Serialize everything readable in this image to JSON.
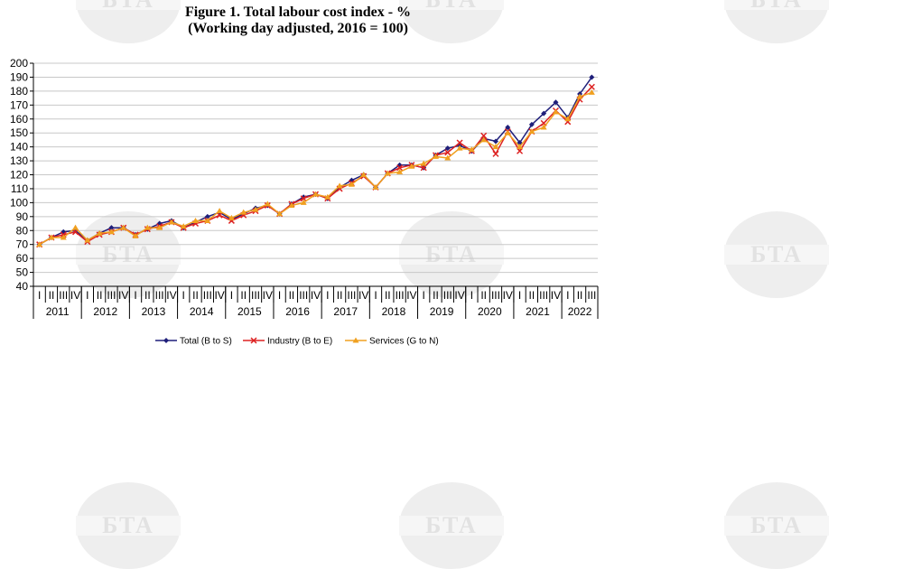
{
  "title_line1": "Figure 1. Total labour cost index - %",
  "title_line2": "(Working day adjusted, 2016 = 100)",
  "watermark_text": "БТА",
  "chart_data": {
    "type": "line",
    "title": "Figure 1. Total labour cost index - %",
    "subtitle": "(Working day adjusted, 2016 = 100)",
    "ylim": [
      40,
      200
    ],
    "yticks": [
      40,
      50,
      60,
      70,
      80,
      90,
      100,
      110,
      120,
      130,
      140,
      150,
      160,
      170,
      180,
      190,
      200
    ],
    "grid": true,
    "legend_position": "bottom",
    "quarter_labels": [
      "I",
      "II",
      "III",
      "IV"
    ],
    "years": [
      "2011",
      "2012",
      "2013",
      "2014",
      "2015",
      "2016",
      "2017",
      "2018",
      "2019",
      "2020",
      "2021",
      "2022"
    ],
    "categories": [
      "2011 I",
      "2011 II",
      "2011 III",
      "2011 IV",
      "2012 I",
      "2012 II",
      "2012 III",
      "2012 IV",
      "2013 I",
      "2013 II",
      "2013 III",
      "2013 IV",
      "2014 I",
      "2014 II",
      "2014 III",
      "2014 IV",
      "2015 I",
      "2015 II",
      "2015 III",
      "2015 IV",
      "2016 I",
      "2016 II",
      "2016 III",
      "2016 IV",
      "2017 I",
      "2017 II",
      "2017 III",
      "2017 IV",
      "2018 I",
      "2018 II",
      "2018 III",
      "2018 IV",
      "2019 I",
      "2019 II",
      "2019 III",
      "2019 IV",
      "2020 I",
      "2020 II",
      "2020 III",
      "2020 IV",
      "2021 I",
      "2021 II",
      "2021 III",
      "2021 IV",
      "2022 I",
      "2022 II",
      "2022 III"
    ],
    "series": [
      {
        "name": "Total (B to S)",
        "color": "#1f1f7a",
        "marker": "diamond",
        "values": [
          70,
          75,
          79,
          80,
          73,
          78,
          82,
          82,
          77,
          81,
          85,
          87,
          82,
          86,
          90,
          93,
          88,
          92,
          96,
          98,
          92,
          99,
          104,
          106,
          103,
          111,
          116,
          120,
          111,
          121,
          127,
          127,
          125,
          134,
          139,
          141,
          137,
          146,
          144,
          154,
          143,
          156,
          164,
          172,
          161,
          178,
          190
        ]
      },
      {
        "name": "Industry (B to E)",
        "color": "#dd2222",
        "marker": "x",
        "values": [
          70,
          75,
          77,
          79,
          72,
          77,
          79,
          82,
          77,
          81,
          83,
          86,
          82,
          85,
          87,
          91,
          87,
          91,
          94,
          98,
          92,
          99,
          103,
          106,
          103,
          110,
          114,
          119,
          111,
          121,
          125,
          127,
          125,
          134,
          136,
          143,
          137,
          148,
          135,
          151,
          137,
          151,
          157,
          166,
          158,
          174,
          183
        ]
      },
      {
        "name": "Services (G to N)",
        "color": "#f0a020",
        "marker": "triangle",
        "values": [
          70,
          75,
          75,
          82,
          73,
          78,
          79,
          82,
          76,
          82,
          82,
          86,
          83,
          87,
          87,
          94,
          89,
          93,
          95,
          99,
          92,
          98,
          100,
          106,
          104,
          112,
          113,
          120,
          111,
          121,
          122,
          126,
          128,
          133,
          132,
          139,
          138,
          145,
          140,
          150,
          140,
          151,
          154,
          165,
          160,
          176,
          179
        ]
      }
    ]
  }
}
